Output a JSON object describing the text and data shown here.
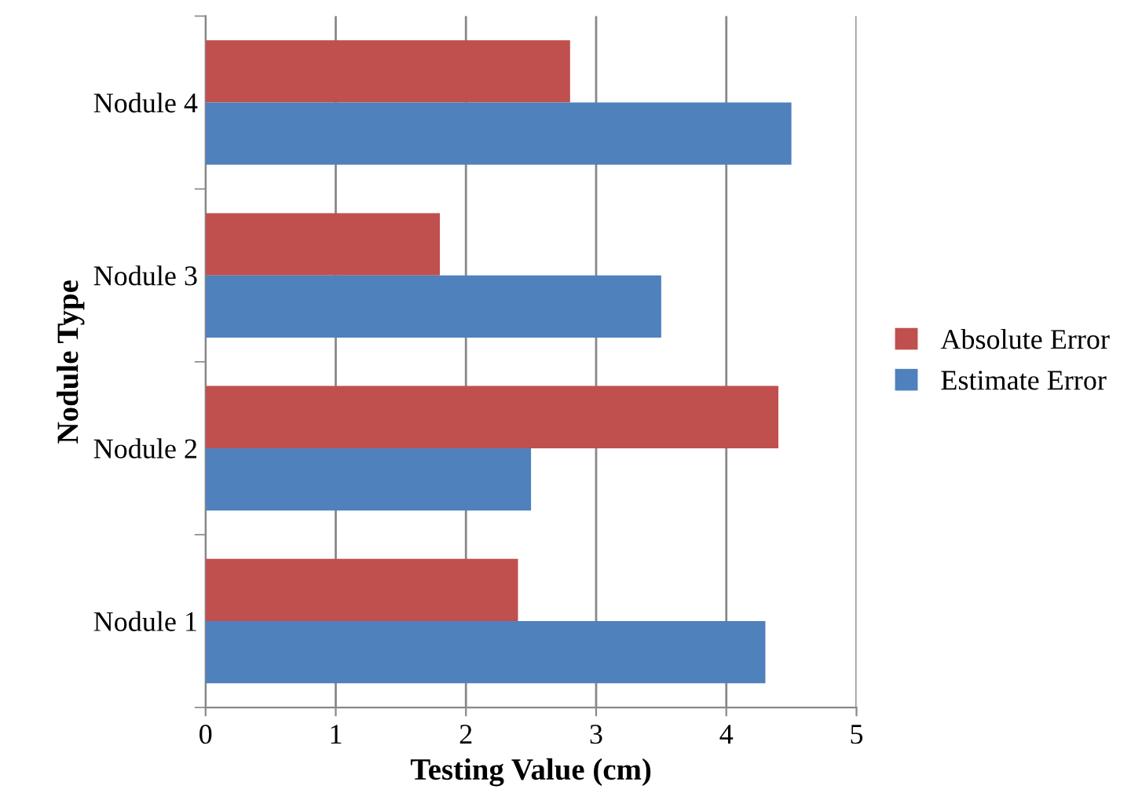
{
  "chart_data": {
    "type": "bar",
    "orientation": "horizontal",
    "categories": [
      "Nodule 4",
      "Nodule 3",
      "Nodule 2",
      "Nodule 1"
    ],
    "series": [
      {
        "name": "Absolute Error",
        "color": "#c0504d",
        "values": [
          2.8,
          1.8,
          4.4,
          2.4
        ]
      },
      {
        "name": "Estimate Error",
        "color": "#4f81bd",
        "values": [
          4.5,
          3.5,
          2.5,
          4.3
        ]
      }
    ],
    "xlim": [
      0,
      5
    ],
    "xticks": [
      0,
      1,
      2,
      3,
      4,
      5
    ],
    "xlabel": "Testing Value (cm)",
    "ylabel": "Nodule Type",
    "grid": "x",
    "legend": "right"
  }
}
